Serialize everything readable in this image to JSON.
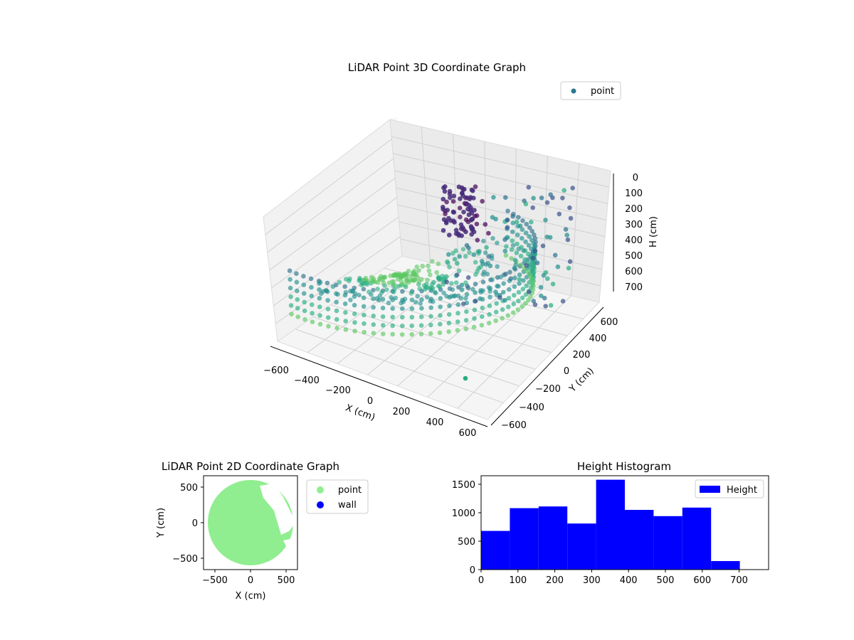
{
  "chart_data": [
    {
      "type": "scatter",
      "title": "LiDAR Point 3D Coordinate Graph",
      "xlabel": "X (cm)",
      "ylabel": "Y (cm)",
      "zlabel": "H (cm)",
      "xlim": [
        -700,
        700
      ],
      "ylim": [
        -700,
        700
      ],
      "zlim": [
        0,
        780
      ],
      "z_axis_inverted": true,
      "x_ticks": [
        "−600",
        "−400",
        "−200",
        "0",
        "200",
        "400",
        "600"
      ],
      "y_ticks": [
        "600",
        "400",
        "200",
        "0",
        "−200",
        "−400",
        "−600"
      ],
      "z_ticks": [
        "0",
        "100",
        "200",
        "300",
        "400",
        "500",
        "600",
        "700"
      ],
      "colormap": "viridis",
      "legend": {
        "position": "top-right",
        "entries": [
          {
            "label": "point",
            "color": "#2a788e"
          }
        ]
      },
      "series": [
        {
          "name": "point",
          "shape": "ring",
          "radius": 600,
          "h_range": [
            0,
            760
          ]
        },
        {
          "name": "point",
          "shape": "scattered cluster",
          "x_range": [
            0,
            620
          ],
          "y_range": [
            -600,
            600
          ],
          "h_range": [
            80,
            640
          ]
        }
      ],
      "outlier": {
        "x": 450,
        "y": -650,
        "h": 650
      }
    },
    {
      "type": "scatter",
      "title": "LiDAR Point 2D Coordinate Graph",
      "xlabel": "X (cm)",
      "ylabel": "Y (cm)",
      "xlim": [
        -650,
        650
      ],
      "ylim": [
        -650,
        650
      ],
      "x_ticks": [
        "−500",
        "0",
        "500"
      ],
      "y_ticks": [
        "500",
        "0",
        "−500"
      ],
      "legend": {
        "position": "right",
        "entries": [
          {
            "label": "point",
            "color": "#90ee90"
          },
          {
            "label": "wall",
            "color": "#0000ff"
          }
        ]
      },
      "series": [
        {
          "name": "point",
          "shape": "filled disc",
          "center": [
            0,
            0
          ],
          "radius": 600,
          "color": "#90ee90"
        },
        {
          "name": "wall",
          "points": []
        }
      ]
    },
    {
      "type": "bar",
      "title": "Height Histogram",
      "xlim": [
        0,
        780
      ],
      "ylim": [
        0,
        1650
      ],
      "x_ticks": [
        "0",
        "100",
        "200",
        "300",
        "400",
        "500",
        "600",
        "700"
      ],
      "y_ticks": [
        "0",
        "500",
        "1000",
        "1500"
      ],
      "legend": {
        "position": "top-right",
        "entries": [
          {
            "label": "Height",
            "color": "#0000ff"
          }
        ]
      },
      "bin_edges": [
        0,
        78,
        156,
        234,
        312,
        390,
        468,
        546,
        624,
        702
      ],
      "series": [
        {
          "name": "Height",
          "values": [
            680,
            1080,
            1110,
            810,
            1580,
            1050,
            940,
            1090,
            150
          ],
          "color": "#0000ff"
        }
      ]
    }
  ]
}
